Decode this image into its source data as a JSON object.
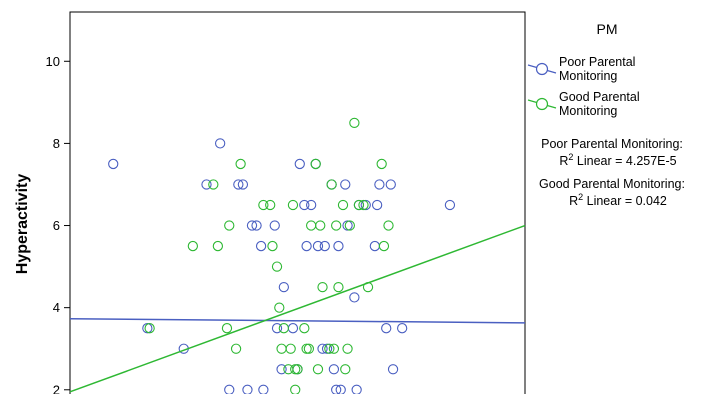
{
  "chart_data": {
    "type": "scatter",
    "title": "",
    "xlabel": "",
    "ylabel": "Hyperactivity",
    "xlim": [
      0,
      100
    ],
    "ylim": [
      1.8,
      11.2
    ],
    "yticks": [
      2,
      4,
      6,
      8,
      10
    ],
    "grid": false,
    "legend": {
      "title": "PM",
      "placement": "right",
      "entries": [
        "Poor Parental Monitoring",
        "Good Parental Monitoring"
      ]
    },
    "fit_lines": [
      {
        "series": "Poor Parental Monitoring",
        "x": [
          0,
          100
        ],
        "y": [
          3.73,
          3.63
        ]
      },
      {
        "series": "Good Parental Monitoring",
        "x": [
          0,
          100
        ],
        "y": [
          1.95,
          6.0
        ]
      }
    ],
    "fit_annotations": [
      {
        "series_label": "Poor Parental Monitoring:",
        "r2_prefix": "R",
        "r2_sup": "2",
        "r2_text": " Linear = 4.257E-5"
      },
      {
        "series_label": "Good Parental Monitoring:",
        "r2_prefix": "R",
        "r2_sup": "2",
        "r2_text": " Linear = 0.042"
      }
    ],
    "series": [
      {
        "name": "Poor Parental Monitoring",
        "color": "#4a5fc1",
        "points": [
          [
            9.5,
            7.5
          ],
          [
            17,
            3.5
          ],
          [
            25,
            3.0
          ],
          [
            30,
            7.0
          ],
          [
            33,
            8.0
          ],
          [
            35,
            2.0
          ],
          [
            37,
            7.0
          ],
          [
            38,
            7.0
          ],
          [
            39,
            2.0
          ],
          [
            41,
            6.0
          ],
          [
            42,
            5.5
          ],
          [
            42.5,
            2.0
          ],
          [
            45,
            6.0
          ],
          [
            45.5,
            3.5
          ],
          [
            46.5,
            2.5
          ],
          [
            47,
            4.5
          ],
          [
            49,
            3.5
          ],
          [
            50,
            2.5
          ],
          [
            50.5,
            7.5
          ],
          [
            51.5,
            6.5
          ],
          [
            52,
            5.5
          ],
          [
            53,
            6.5
          ],
          [
            54,
            7.5
          ],
          [
            54.5,
            5.5
          ],
          [
            55.5,
            3.0
          ],
          [
            56,
            5.5
          ],
          [
            56.5,
            3.0
          ],
          [
            57.5,
            7.0
          ],
          [
            58,
            2.5
          ],
          [
            58.5,
            2.0
          ],
          [
            59,
            5.5
          ],
          [
            59.5,
            2.0
          ],
          [
            60.5,
            7.0
          ],
          [
            61,
            6.0
          ],
          [
            62.5,
            4.25
          ],
          [
            63,
            2.0
          ],
          [
            63.5,
            6.5
          ],
          [
            67,
            5.5
          ],
          [
            67.5,
            6.5
          ],
          [
            68,
            7.0
          ],
          [
            69.5,
            3.5
          ],
          [
            70.5,
            7.0
          ],
          [
            71,
            2.5
          ],
          [
            73,
            3.5
          ],
          [
            83.5,
            6.5
          ],
          [
            40,
            6.0
          ],
          [
            65,
            6.5
          ]
        ]
      },
      {
        "name": "Good Parental Monitoring",
        "color": "#2eb833",
        "points": [
          [
            17.5,
            3.5
          ],
          [
            27,
            5.5
          ],
          [
            31.5,
            7.0
          ],
          [
            32.5,
            5.5
          ],
          [
            34.5,
            3.5
          ],
          [
            35,
            6.0
          ],
          [
            36.5,
            3.0
          ],
          [
            37.5,
            7.5
          ],
          [
            42.5,
            6.5
          ],
          [
            44,
            6.5
          ],
          [
            44.5,
            5.5
          ],
          [
            45.5,
            5.0
          ],
          [
            46,
            4.0
          ],
          [
            47,
            3.5
          ],
          [
            48,
            2.5
          ],
          [
            48.5,
            3.0
          ],
          [
            49,
            6.5
          ],
          [
            49.5,
            2.0
          ],
          [
            50,
            2.5
          ],
          [
            51.5,
            3.5
          ],
          [
            52,
            3.0
          ],
          [
            53,
            6.0
          ],
          [
            54,
            7.5
          ],
          [
            54.5,
            2.5
          ],
          [
            55,
            6.0
          ],
          [
            55.5,
            4.5
          ],
          [
            57,
            3.0
          ],
          [
            57.5,
            7.0
          ],
          [
            58.5,
            6.0
          ],
          [
            59,
            4.5
          ],
          [
            60,
            6.5
          ],
          [
            60.5,
            2.5
          ],
          [
            61.5,
            6.0
          ],
          [
            62.5,
            8.5
          ],
          [
            63.5,
            6.5
          ],
          [
            64.5,
            6.5
          ],
          [
            68.5,
            7.5
          ],
          [
            70,
            6.0
          ],
          [
            46.5,
            3.0
          ],
          [
            52.5,
            3.0
          ],
          [
            58,
            3.0
          ],
          [
            49.5,
            2.5
          ],
          [
            61,
            3.0
          ],
          [
            65.5,
            4.5
          ],
          [
            69,
            5.5
          ]
        ]
      }
    ]
  }
}
